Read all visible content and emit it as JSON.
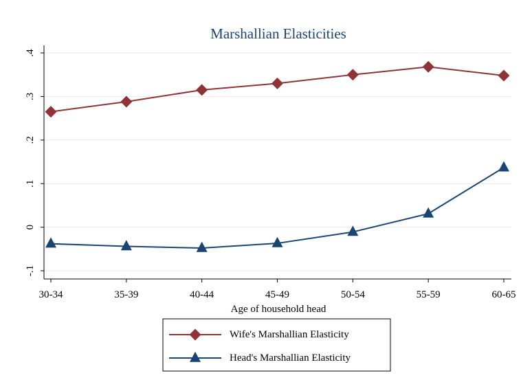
{
  "chart_data": {
    "type": "line",
    "title": "Marshallian Elasticities",
    "xlabel": "Age of household head",
    "ylabel": "",
    "categories": [
      "30-34",
      "35-39",
      "40-44",
      "45-49",
      "50-54",
      "55-59",
      "60-65"
    ],
    "ylim": [
      -0.1,
      0.4
    ],
    "yticks": [
      -0.1,
      0,
      0.1,
      0.2,
      0.3,
      0.4
    ],
    "ytick_labels": [
      "-.1",
      "0",
      ".1",
      ".2",
      ".3",
      ".4"
    ],
    "grid": true,
    "legend_position": "bottom",
    "series": [
      {
        "name": "Wife's Marshallian Elasticity",
        "values": [
          0.265,
          0.288,
          0.315,
          0.33,
          0.35,
          0.368,
          0.348
        ],
        "color": "#903338",
        "marker": "diamond"
      },
      {
        "name": "Head's Marshallian Elasticity",
        "values": [
          -0.038,
          -0.044,
          -0.048,
          -0.037,
          -0.011,
          0.031,
          0.137
        ],
        "color": "#1a4472",
        "marker": "triangle"
      }
    ]
  }
}
